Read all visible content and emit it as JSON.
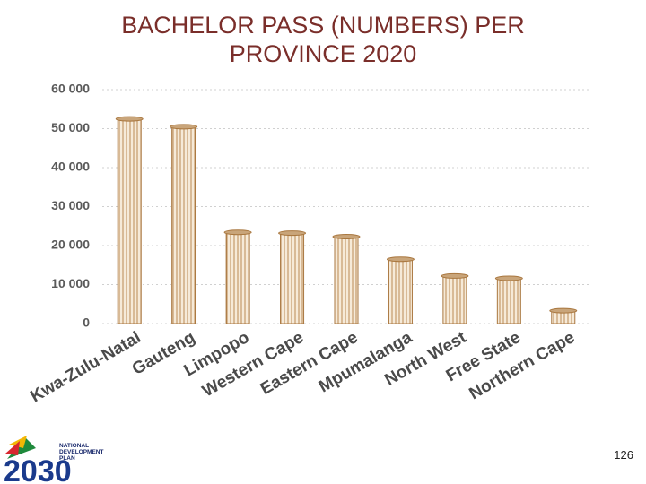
{
  "chart_data": {
    "type": "bar",
    "title": "BACHELOR PASS (NUMBERS) PER PROVINCE 2020",
    "categories": [
      "Kwa-Zulu-Natal",
      "Gauteng",
      "Limpopo",
      "Western Cape",
      "Eastern Cape",
      "Mpumalanga",
      "North West",
      "Free State",
      "Northern Cape"
    ],
    "values": [
      52500,
      50500,
      23400,
      23200,
      22300,
      16500,
      12200,
      11600,
      3300
    ],
    "color": "#c9a57a",
    "ylim": [
      0,
      60000
    ],
    "yticks": [
      {
        "value": 0,
        "label": "0"
      },
      {
        "value": 10000,
        "label": "10 000"
      },
      {
        "value": 20000,
        "label": "20 000"
      },
      {
        "value": 30000,
        "label": "30 000"
      },
      {
        "value": 40000,
        "label": "40 000"
      },
      {
        "value": 50000,
        "label": "50 000"
      },
      {
        "value": 60000,
        "label": "60 000"
      }
    ],
    "grid": true
  },
  "logo": {
    "line1": "NATIONAL",
    "line2": "DEVELOPMENT",
    "line3": "PLAN",
    "year": "2030"
  },
  "page_number": "126"
}
